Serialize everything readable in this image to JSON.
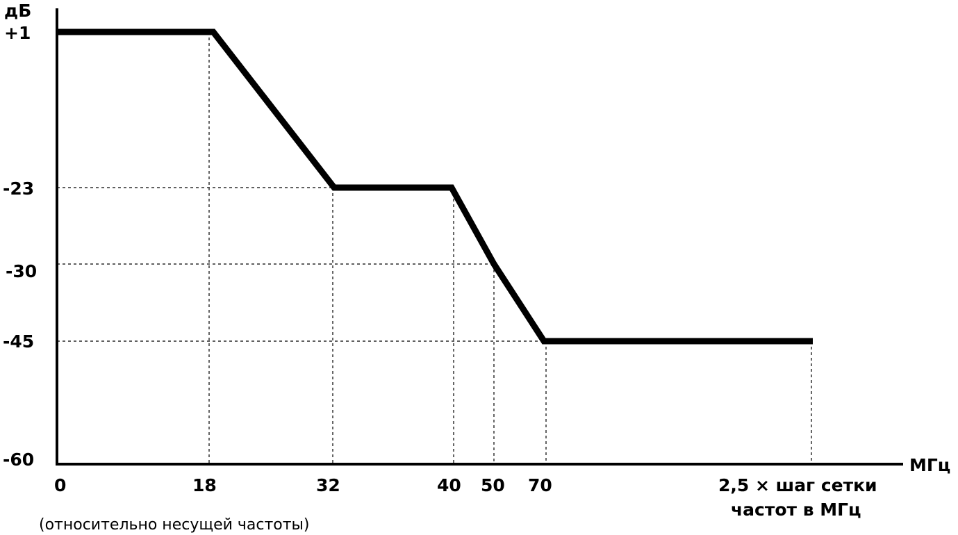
{
  "chart_data": {
    "type": "line",
    "title": "",
    "ylabel": "дБ",
    "xlabel": "МГц",
    "x_tick_labels": [
      "0",
      "18",
      "32",
      "40",
      "50",
      "70",
      "2,5 × шаг сетки",
      "частот в МГц"
    ],
    "y_tick_labels": [
      "+1",
      "-23",
      "-30",
      "-45",
      "-60"
    ],
    "x_note": "(относительно несущей частоты)",
    "series": [
      {
        "points": [
          {
            "x": "0",
            "y": 1
          },
          {
            "x": "18",
            "y": 1
          },
          {
            "x": "32",
            "y": -23
          },
          {
            "x": "40",
            "y": -23
          },
          {
            "x": "50",
            "y": -30
          },
          {
            "x": "70",
            "y": -45
          },
          {
            "x": "2,5 × шаг сетки частот в МГц",
            "y": -45
          }
        ]
      }
    ],
    "grid": false,
    "reference_lines": "dashed at each breakpoint",
    "colors": {
      "line": "#000000",
      "background": "#ffffff"
    }
  }
}
